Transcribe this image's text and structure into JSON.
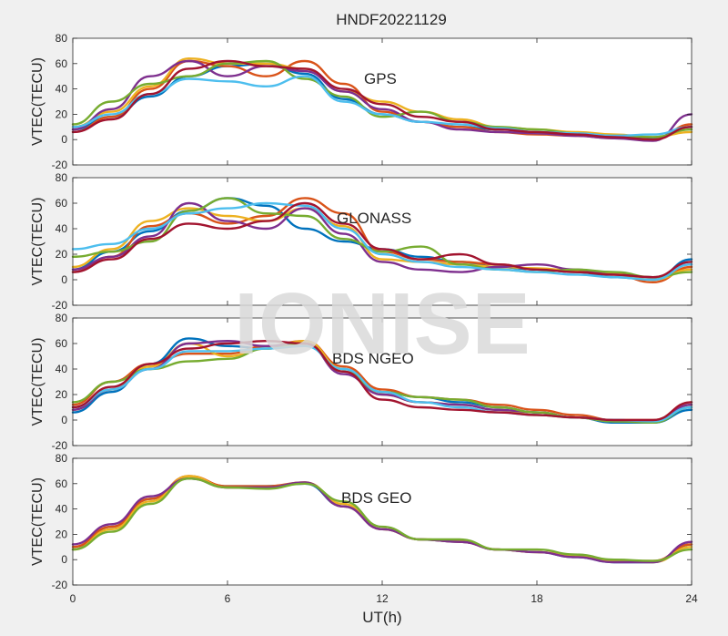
{
  "figure": {
    "title": "HNDF20221129",
    "xlabel": "UT(h)",
    "watermark": "IONISE"
  },
  "chart_data": [
    {
      "type": "line",
      "panel_label": "GPS",
      "ylabel": "VTEC(TECU)",
      "xlim": [
        0,
        24
      ],
      "ylim": [
        -20,
        80
      ],
      "xticks": [
        0,
        6,
        12,
        18,
        24
      ],
      "yticks": [
        -20,
        0,
        20,
        40,
        60,
        80
      ],
      "series": [
        {
          "color": "#0072BD",
          "x": [
            0,
            1.5,
            3,
            4.5,
            6,
            7.5,
            9,
            10.5,
            12,
            13.5,
            15,
            16.5,
            18,
            19.5,
            21,
            22.5,
            24
          ],
          "y": [
            8,
            18,
            34,
            50,
            58,
            60,
            52,
            32,
            20,
            14,
            10,
            8,
            6,
            4,
            2,
            1,
            10
          ]
        },
        {
          "color": "#D95319",
          "x": [
            0,
            1.5,
            3,
            4.5,
            6,
            7.5,
            9,
            10.5,
            12,
            13.5,
            15,
            16.5,
            18,
            19.5,
            21,
            22.5,
            24
          ],
          "y": [
            6,
            18,
            40,
            62,
            58,
            50,
            62,
            44,
            22,
            14,
            10,
            6,
            4,
            3,
            1,
            0,
            12
          ]
        },
        {
          "color": "#EDB120",
          "x": [
            0,
            1.5,
            3,
            4.5,
            6,
            7.5,
            9,
            10.5,
            12,
            13.5,
            15,
            16.5,
            18,
            19.5,
            21,
            22.5,
            24
          ],
          "y": [
            10,
            22,
            42,
            64,
            60,
            60,
            56,
            38,
            30,
            22,
            16,
            10,
            8,
            6,
            4,
            2,
            6
          ]
        },
        {
          "color": "#7E2F8E",
          "x": [
            0,
            1.5,
            3,
            4.5,
            6,
            7.5,
            9,
            10.5,
            12,
            13.5,
            15,
            16.5,
            18,
            19.5,
            21,
            22.5,
            24
          ],
          "y": [
            8,
            24,
            50,
            62,
            50,
            58,
            54,
            38,
            24,
            14,
            8,
            6,
            5,
            3,
            1,
            -1,
            20
          ]
        },
        {
          "color": "#77AC30",
          "x": [
            0,
            1.5,
            3,
            4.5,
            6,
            7.5,
            9,
            10.5,
            12,
            13.5,
            15,
            16.5,
            18,
            19.5,
            21,
            22.5,
            24
          ],
          "y": [
            12,
            30,
            44,
            50,
            60,
            62,
            48,
            34,
            18,
            22,
            14,
            10,
            8,
            5,
            3,
            2,
            8
          ]
        },
        {
          "color": "#4DBEEE",
          "x": [
            0,
            1.5,
            3,
            4.5,
            6,
            7.5,
            9,
            10.5,
            12,
            13.5,
            15,
            16.5,
            18,
            19.5,
            21,
            22.5,
            24
          ],
          "y": [
            10,
            20,
            36,
            48,
            46,
            42,
            50,
            30,
            20,
            14,
            12,
            9,
            6,
            5,
            3,
            4,
            10
          ]
        },
        {
          "color": "#A2142F",
          "x": [
            0,
            1.5,
            3,
            4.5,
            6,
            7.5,
            9,
            10.5,
            12,
            13.5,
            15,
            16.5,
            18,
            19.5,
            21,
            22.5,
            24
          ],
          "y": [
            6,
            16,
            36,
            56,
            62,
            58,
            56,
            40,
            28,
            18,
            14,
            8,
            6,
            4,
            2,
            0,
            10
          ]
        }
      ]
    },
    {
      "type": "line",
      "panel_label": "GLONASS",
      "ylabel": "VTEC(TECU)",
      "xlim": [
        0,
        24
      ],
      "ylim": [
        -20,
        80
      ],
      "xticks": [
        0,
        6,
        12,
        18,
        24
      ],
      "yticks": [
        -20,
        0,
        20,
        40,
        60,
        80
      ],
      "series": [
        {
          "color": "#0072BD",
          "x": [
            0,
            1.5,
            3,
            4.5,
            6,
            7.5,
            9,
            10.5,
            12,
            13.5,
            15,
            16.5,
            18,
            19.5,
            21,
            22.5,
            24
          ],
          "y": [
            8,
            22,
            38,
            54,
            64,
            58,
            40,
            30,
            24,
            18,
            14,
            10,
            8,
            6,
            2,
            0,
            16
          ]
        },
        {
          "color": "#D95319",
          "x": [
            0,
            1.5,
            3,
            4.5,
            6,
            7.5,
            9,
            10.5,
            12,
            13.5,
            15,
            16.5,
            18,
            19.5,
            21,
            22.5,
            24
          ],
          "y": [
            6,
            18,
            42,
            52,
            44,
            50,
            64,
            52,
            22,
            16,
            14,
            12,
            8,
            6,
            4,
            -2,
            10
          ]
        },
        {
          "color": "#EDB120",
          "x": [
            0,
            1.5,
            3,
            4.5,
            6,
            7.5,
            9,
            10.5,
            12,
            13.5,
            15,
            16.5,
            18,
            19.5,
            21,
            22.5,
            24
          ],
          "y": [
            10,
            24,
            46,
            56,
            50,
            46,
            56,
            42,
            16,
            14,
            12,
            10,
            9,
            7,
            5,
            0,
            8
          ]
        },
        {
          "color": "#7E2F8E",
          "x": [
            0,
            1.5,
            3,
            4.5,
            6,
            7.5,
            9,
            10.5,
            12,
            13.5,
            15,
            16.5,
            18,
            19.5,
            21,
            22.5,
            24
          ],
          "y": [
            8,
            18,
            34,
            60,
            46,
            40,
            56,
            36,
            14,
            8,
            6,
            10,
            12,
            8,
            4,
            2,
            12
          ]
        },
        {
          "color": "#77AC30",
          "x": [
            0,
            1.5,
            3,
            4.5,
            6,
            7.5,
            9,
            10.5,
            12,
            13.5,
            15,
            16.5,
            18,
            19.5,
            21,
            22.5,
            24
          ],
          "y": [
            18,
            22,
            30,
            54,
            64,
            52,
            50,
            32,
            22,
            26,
            12,
            8,
            6,
            8,
            6,
            2,
            6
          ]
        },
        {
          "color": "#4DBEEE",
          "x": [
            0,
            1.5,
            3,
            4.5,
            6,
            7.5,
            9,
            10.5,
            12,
            13.5,
            15,
            16.5,
            18,
            19.5,
            21,
            22.5,
            24
          ],
          "y": [
            24,
            28,
            40,
            52,
            56,
            60,
            58,
            40,
            20,
            14,
            10,
            8,
            6,
            4,
            2,
            0,
            12
          ]
        },
        {
          "color": "#A2142F",
          "x": [
            0,
            1.5,
            3,
            4.5,
            6,
            7.5,
            9,
            10.5,
            12,
            13.5,
            15,
            16.5,
            18,
            19.5,
            21,
            22.5,
            24
          ],
          "y": [
            6,
            16,
            32,
            44,
            40,
            46,
            60,
            44,
            24,
            16,
            20,
            12,
            8,
            6,
            4,
            2,
            14
          ]
        }
      ]
    },
    {
      "type": "line",
      "panel_label": "BDS NGEO",
      "ylabel": "VTEC(TECU)",
      "xlim": [
        0,
        24
      ],
      "ylim": [
        -20,
        80
      ],
      "xticks": [
        0,
        6,
        12,
        18,
        24
      ],
      "yticks": [
        -20,
        0,
        20,
        40,
        60,
        80
      ],
      "series": [
        {
          "color": "#0072BD",
          "x": [
            0,
            1.5,
            3,
            4.5,
            6,
            7.5,
            9,
            10.5,
            12,
            13.5,
            15,
            16.5,
            18,
            19.5,
            21,
            22.5,
            24
          ],
          "y": [
            6,
            22,
            44,
            64,
            58,
            56,
            60,
            40,
            22,
            18,
            14,
            10,
            6,
            2,
            -2,
            -2,
            8
          ]
        },
        {
          "color": "#D95319",
          "x": [
            0,
            1.5,
            3,
            4.5,
            6,
            7.5,
            9,
            10.5,
            12,
            13.5,
            15,
            16.5,
            18,
            19.5,
            21,
            22.5,
            24
          ],
          "y": [
            12,
            30,
            44,
            52,
            52,
            58,
            62,
            42,
            24,
            18,
            16,
            12,
            8,
            4,
            0,
            0,
            14
          ]
        },
        {
          "color": "#EDB120",
          "x": [
            0,
            1.5,
            3,
            4.5,
            6,
            7.5,
            9,
            10.5,
            12,
            13.5,
            15,
            16.5,
            18,
            19.5,
            21,
            22.5,
            24
          ],
          "y": [
            8,
            24,
            42,
            60,
            50,
            56,
            62,
            40,
            20,
            14,
            12,
            8,
            4,
            2,
            -1,
            -1,
            12
          ]
        },
        {
          "color": "#7E2F8E",
          "x": [
            0,
            1.5,
            3,
            4.5,
            6,
            7.5,
            9,
            10.5,
            12,
            13.5,
            15,
            16.5,
            18,
            19.5,
            21,
            22.5,
            24
          ],
          "y": [
            8,
            24,
            40,
            60,
            62,
            58,
            60,
            36,
            20,
            14,
            12,
            8,
            6,
            2,
            0,
            -1,
            12
          ]
        },
        {
          "color": "#77AC30",
          "x": [
            0,
            1.5,
            3,
            4.5,
            6,
            7.5,
            9,
            10.5,
            12,
            13.5,
            15,
            16.5,
            18,
            19.5,
            21,
            22.5,
            24
          ],
          "y": [
            14,
            30,
            40,
            46,
            48,
            56,
            60,
            38,
            22,
            18,
            16,
            10,
            6,
            2,
            -1,
            -2,
            10
          ]
        },
        {
          "color": "#4DBEEE",
          "x": [
            0,
            1.5,
            3,
            4.5,
            6,
            7.5,
            9,
            10.5,
            12,
            13.5,
            15,
            16.5,
            18,
            19.5,
            21,
            22.5,
            24
          ],
          "y": [
            10,
            24,
            40,
            54,
            54,
            56,
            58,
            40,
            22,
            14,
            10,
            6,
            4,
            2,
            0,
            -1,
            10
          ]
        },
        {
          "color": "#A2142F",
          "x": [
            0,
            1.5,
            3,
            4.5,
            6,
            7.5,
            9,
            10.5,
            12,
            13.5,
            15,
            16.5,
            18,
            19.5,
            21,
            22.5,
            24
          ],
          "y": [
            10,
            26,
            44,
            56,
            60,
            62,
            60,
            38,
            16,
            10,
            8,
            6,
            4,
            2,
            0,
            0,
            14
          ]
        }
      ]
    },
    {
      "type": "line",
      "panel_label": "BDS GEO",
      "ylabel": "VTEC(TECU)",
      "xlim": [
        0,
        24
      ],
      "ylim": [
        -20,
        80
      ],
      "xticks": [
        0,
        6,
        12,
        18,
        24
      ],
      "yticks": [
        -20,
        0,
        20,
        40,
        60,
        80
      ],
      "series": [
        {
          "color": "#0072BD",
          "x": [
            0,
            1.5,
            3,
            4.5,
            6,
            7.5,
            9,
            10.5,
            12,
            13.5,
            15,
            16.5,
            18,
            19.5,
            21,
            22.5,
            24
          ],
          "y": [
            8,
            26,
            48,
            64,
            58,
            58,
            60,
            42,
            24,
            16,
            14,
            8,
            6,
            2,
            -2,
            -2,
            12
          ]
        },
        {
          "color": "#D95319",
          "x": [
            0,
            1.5,
            3,
            4.5,
            6,
            7.5,
            9,
            10.5,
            12,
            13.5,
            15,
            16.5,
            18,
            19.5,
            21,
            22.5,
            24
          ],
          "y": [
            10,
            26,
            48,
            66,
            58,
            58,
            61,
            42,
            24,
            16,
            14,
            8,
            6,
            3,
            -1,
            -1,
            12
          ]
        },
        {
          "color": "#EDB120",
          "x": [
            0,
            1.5,
            3,
            4.5,
            6,
            7.5,
            9,
            10.5,
            12,
            13.5,
            15,
            16.5,
            18,
            19.5,
            21,
            22.5,
            24
          ],
          "y": [
            8,
            24,
            46,
            66,
            57,
            57,
            61,
            44,
            24,
            16,
            15,
            8,
            6,
            3,
            -1,
            -2,
            10
          ]
        },
        {
          "color": "#7E2F8E",
          "x": [
            0,
            1.5,
            3,
            4.5,
            6,
            7.5,
            9,
            10.5,
            12,
            13.5,
            15,
            16.5,
            18,
            19.5,
            21,
            22.5,
            24
          ],
          "y": [
            12,
            28,
            50,
            64,
            57,
            57,
            61,
            42,
            24,
            16,
            14,
            8,
            6,
            2,
            -2,
            -2,
            14
          ]
        },
        {
          "color": "#77AC30",
          "x": [
            0,
            1.5,
            3,
            4.5,
            6,
            7.5,
            9,
            10.5,
            12,
            13.5,
            15,
            16.5,
            18,
            19.5,
            21,
            22.5,
            24
          ],
          "y": [
            8,
            22,
            44,
            64,
            57,
            56,
            60,
            46,
            26,
            16,
            16,
            8,
            8,
            4,
            0,
            -1,
            8
          ]
        }
      ]
    }
  ]
}
